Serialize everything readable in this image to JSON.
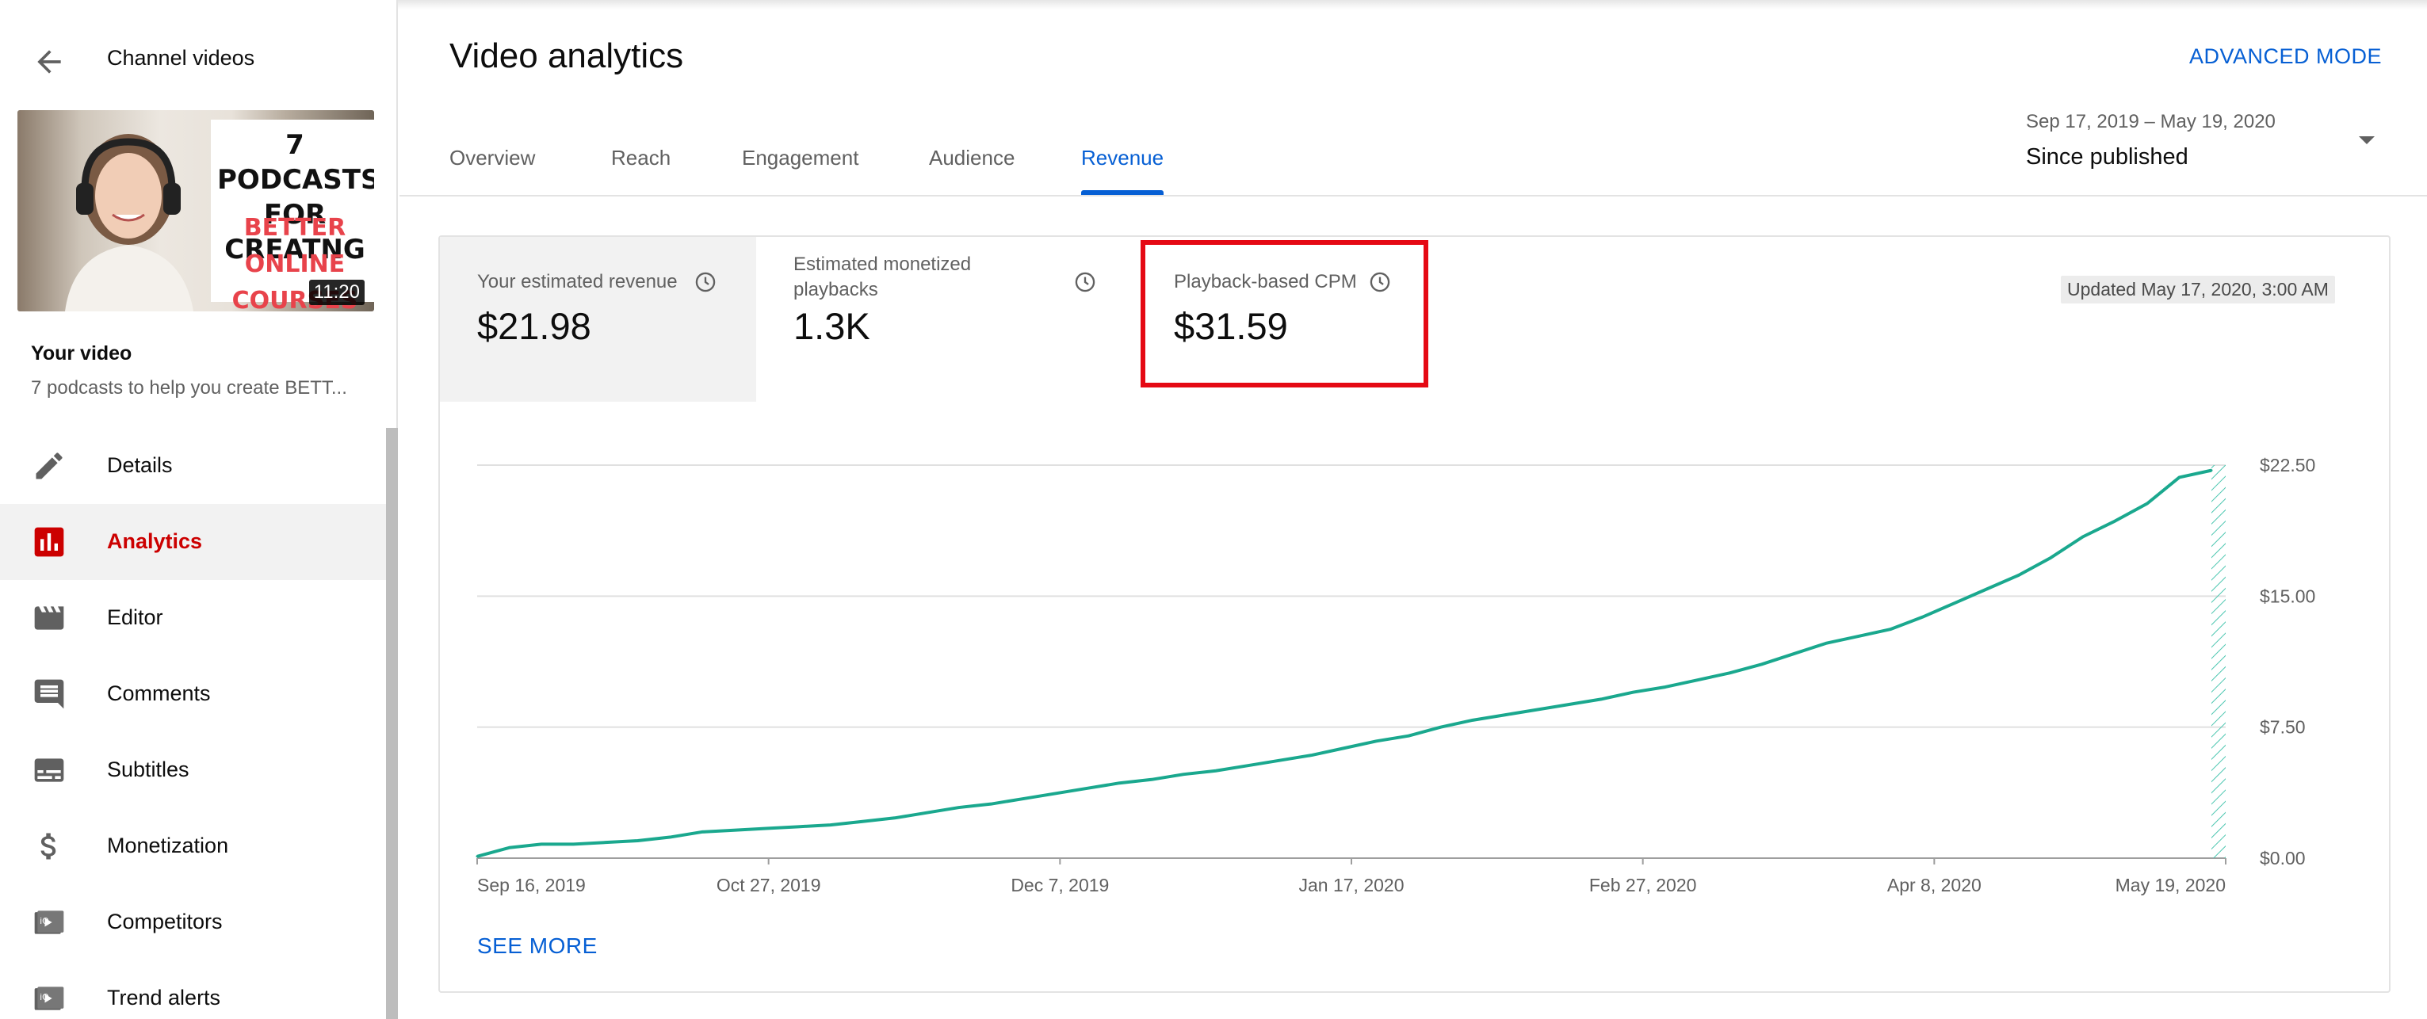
{
  "sidebar": {
    "back_label": "Channel videos",
    "thumbnail": {
      "title_lines": [
        "7 PODCASTS",
        "FOR CREATNG"
      ],
      "accent_lines": [
        "BETTER ONLINE",
        "COURSES"
      ],
      "duration": "11:20"
    },
    "your_video_label": "Your video",
    "video_title": "7 podcasts to help you create BETT...",
    "items": [
      {
        "label": "Details",
        "icon": "pencil-icon"
      },
      {
        "label": "Analytics",
        "icon": "analytics-icon",
        "active": true
      },
      {
        "label": "Editor",
        "icon": "clapperboard-icon"
      },
      {
        "label": "Comments",
        "icon": "comment-icon"
      },
      {
        "label": "Subtitles",
        "icon": "subtitles-icon"
      },
      {
        "label": "Monetization",
        "icon": "dollar-icon"
      },
      {
        "label": "Competitors",
        "icon": "competitors-icon"
      },
      {
        "label": "Trend alerts",
        "icon": "trend-alerts-icon"
      }
    ]
  },
  "header": {
    "title": "Video analytics",
    "advanced_mode": "ADVANCED MODE"
  },
  "tabs": [
    {
      "label": "Overview"
    },
    {
      "label": "Reach"
    },
    {
      "label": "Engagement"
    },
    {
      "label": "Audience"
    },
    {
      "label": "Revenue",
      "active": true
    }
  ],
  "date_range": {
    "range": "Sep 17, 2019 – May 19, 2020",
    "label": "Since published"
  },
  "metrics": [
    {
      "label": "Your estimated revenue",
      "value": "$21.98"
    },
    {
      "label": "Estimated monetized playbacks",
      "value": "1.3K"
    },
    {
      "label": "Playback-based CPM",
      "value": "$31.59"
    }
  ],
  "updated": "Updated May 17, 2020, 3:00 AM",
  "see_more": "SEE MORE",
  "colors": {
    "accent_blue": "#065fd4",
    "active_red": "#cc0000",
    "highlight_red": "#e50914",
    "series_teal": "#1aa88e"
  },
  "chart_data": {
    "type": "line",
    "series": [
      {
        "values": [
          0.1,
          0.6,
          0.8,
          0.8,
          0.9,
          1.0,
          1.2,
          1.5,
          1.6,
          1.7,
          1.8,
          1.9,
          2.1,
          2.3,
          2.6,
          2.9,
          3.1,
          3.4,
          3.7,
          4.0,
          4.3,
          4.5,
          4.8,
          5.0,
          5.3,
          5.6,
          5.9,
          6.3,
          6.7,
          7.0,
          7.5,
          7.9,
          8.2,
          8.5,
          8.8,
          9.1,
          9.5,
          9.8,
          10.2,
          10.6,
          11.1,
          11.7,
          12.3,
          12.7,
          13.1,
          13.8,
          14.6,
          15.4,
          16.2,
          17.2,
          18.4,
          19.3,
          20.3,
          21.8,
          22.2
        ]
      }
    ],
    "x_tick_labels": [
      "Sep 16, 2019",
      "Oct 27, 2019",
      "Dec 7, 2019",
      "Jan 17, 2020",
      "Feb 27, 2020",
      "Apr 8, 2020",
      "May 19, 2020"
    ],
    "y_tick_labels": [
      "$0.00",
      "$7.50",
      "$15.00",
      "$22.50"
    ],
    "y_ticks": [
      0,
      7.5,
      15,
      22.5
    ],
    "ylim": [
      0,
      22.5
    ],
    "xlim_days_label": "Sep 16, 2019 – May 19, 2020",
    "grid": true,
    "hatched_partial_period_at_end": true
  }
}
